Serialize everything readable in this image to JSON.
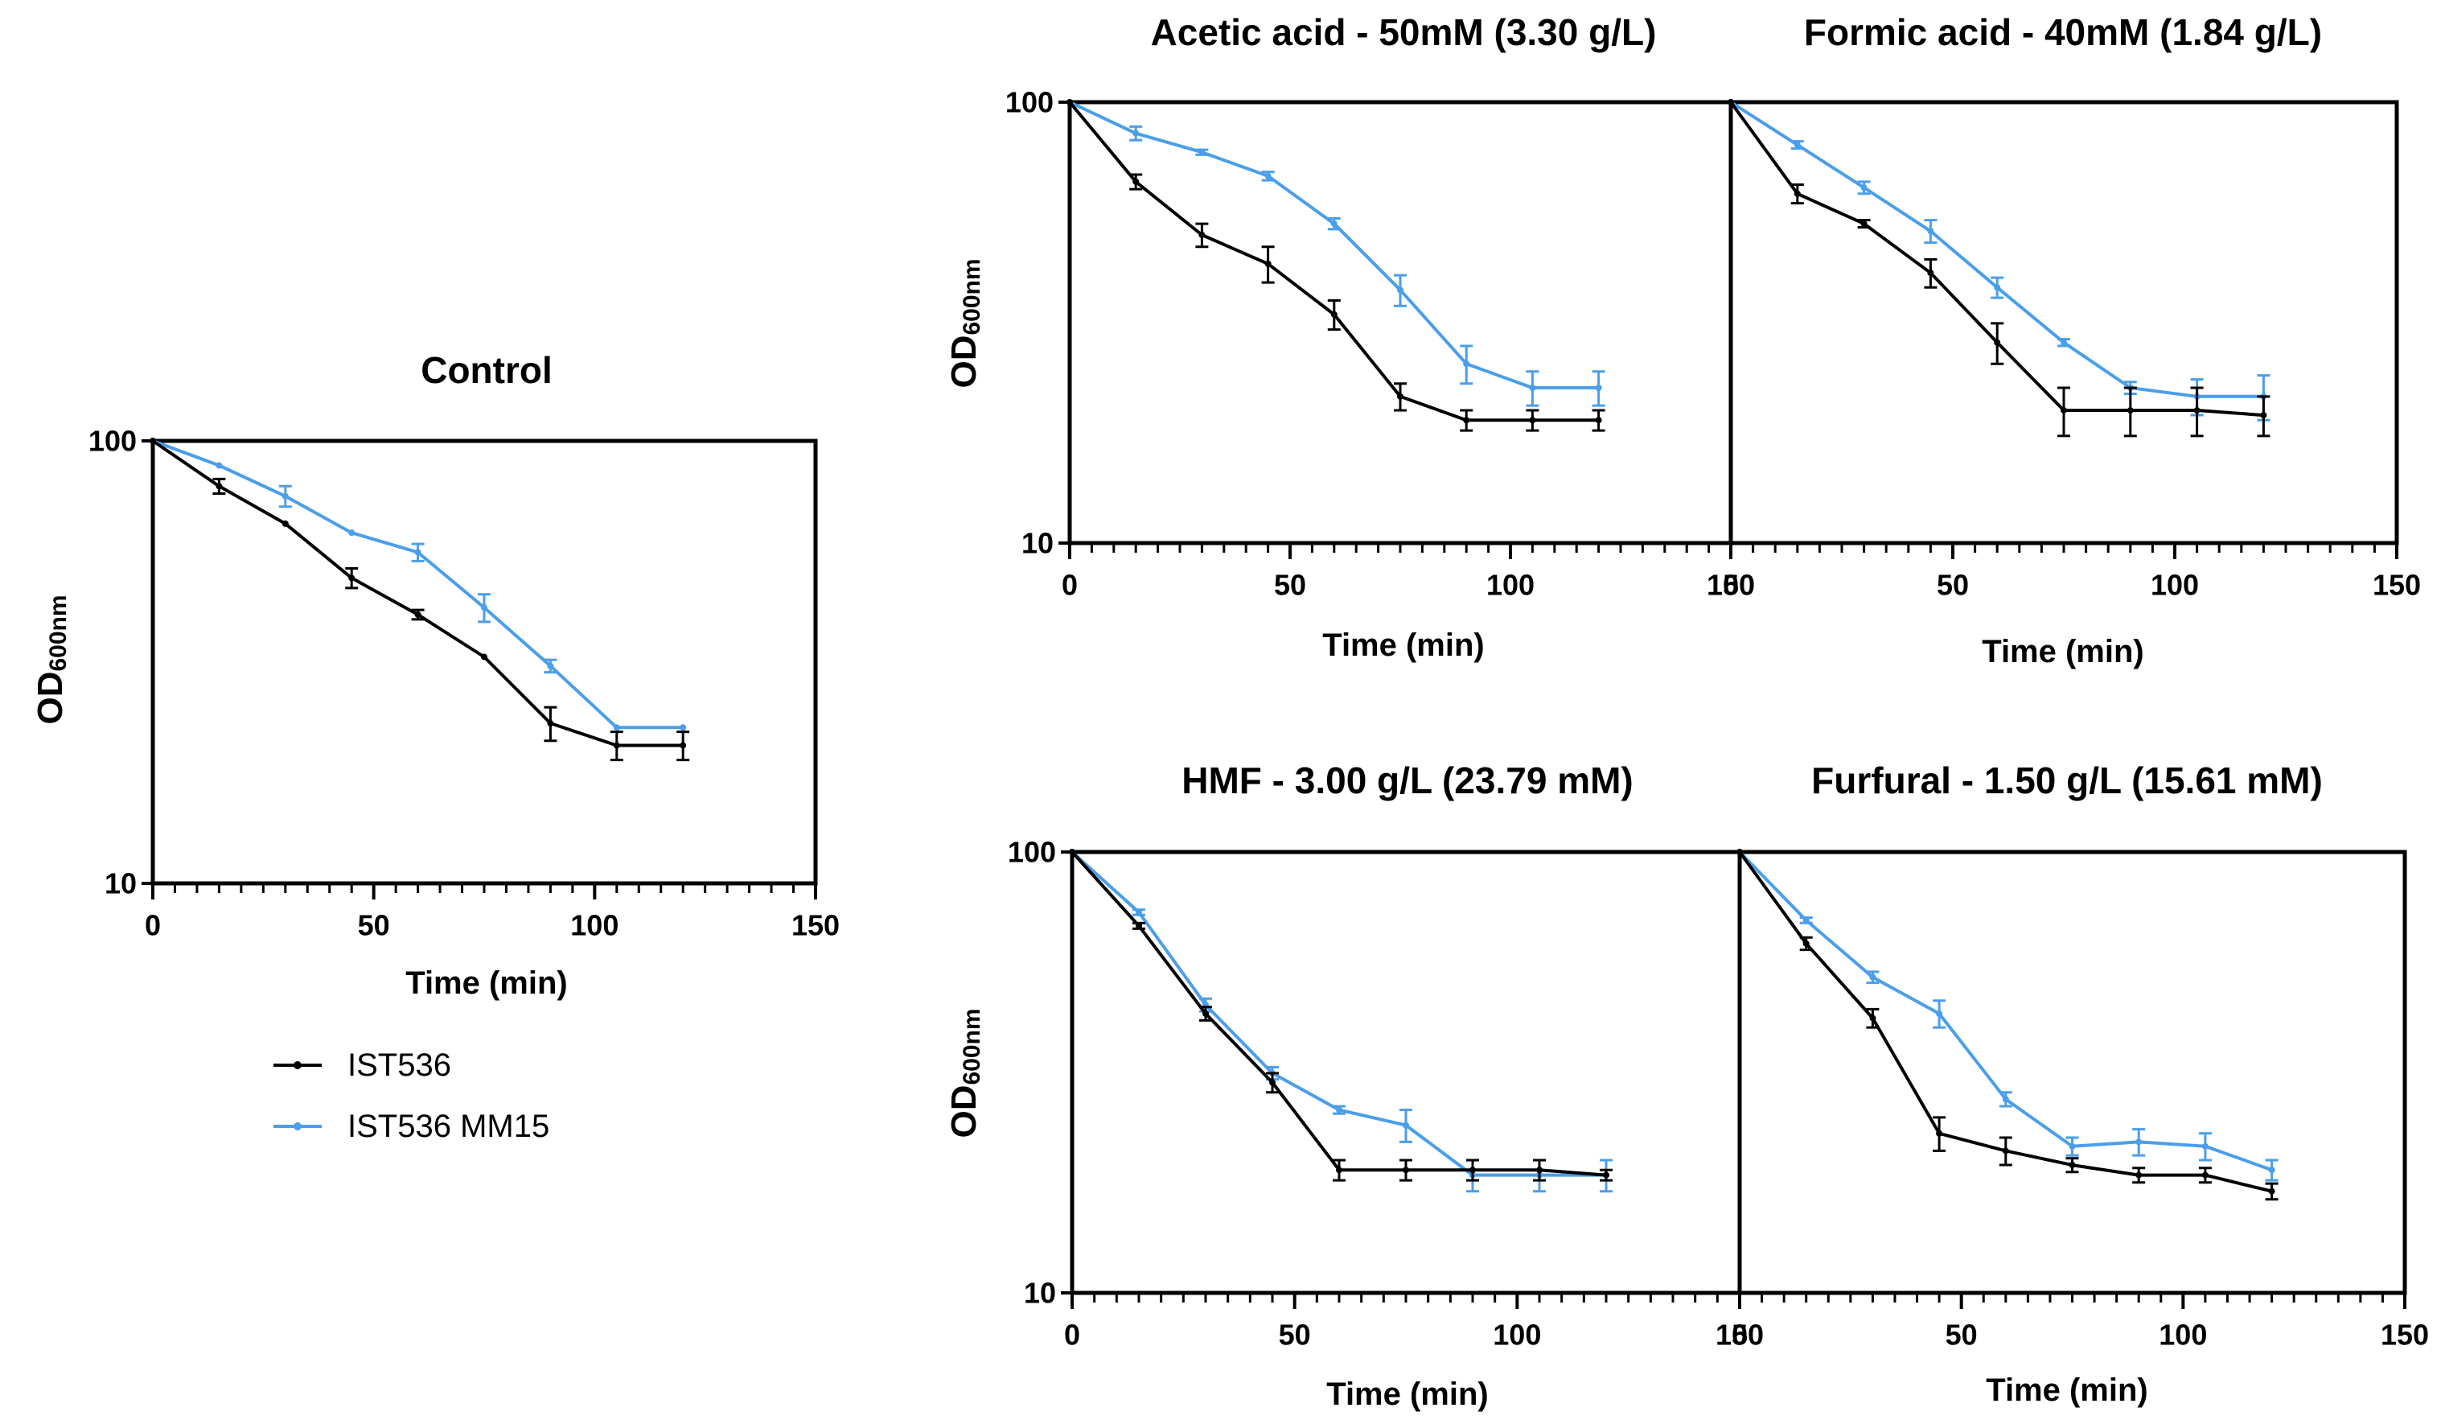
{
  "figure": {
    "legend": [
      {
        "name": "IST536",
        "color": "#000000"
      },
      {
        "name": "IST536 MM15",
        "color": "#4a9eea"
      }
    ]
  },
  "chart_data": [
    {
      "type": "line",
      "title": "Control",
      "xlabel": "Time (min)",
      "ylabel_main": "OD",
      "ylabel_sub": "600nm",
      "yscale": "log",
      "xlim": [
        0,
        150
      ],
      "ylim": [
        10,
        100
      ],
      "x_ticks": [
        "0",
        "50",
        "100",
        "150"
      ],
      "y_ticks": [
        "10",
        "100"
      ],
      "x": [
        0,
        15,
        30,
        45,
        60,
        75,
        90,
        105,
        120
      ],
      "series": [
        {
          "name": "IST536",
          "values": [
            100,
            79,
            65,
            49,
            40.5,
            32.5,
            23,
            20.5,
            20.5
          ],
          "errors": [
            0,
            3,
            0,
            2.5,
            1,
            0,
            2,
            1.5,
            1.5
          ]
        },
        {
          "name": "IST536 MM15",
          "values": [
            100,
            88,
            75,
            62,
            56,
            42,
            31,
            22.5,
            22.5
          ],
          "errors": [
            0,
            0,
            4,
            0,
            2.5,
            3,
            1,
            0,
            0
          ]
        }
      ]
    },
    {
      "type": "line",
      "title": "Acetic acid - 50mM (3.30 g/L)",
      "xlabel": "Time (min)",
      "ylabel_main": "OD",
      "ylabel_sub": "600nm",
      "yscale": "log",
      "xlim": [
        0,
        150
      ],
      "ylim": [
        10,
        100
      ],
      "x_ticks": [
        "0",
        "50",
        "100",
        "150"
      ],
      "y_ticks": [
        "10",
        "100"
      ],
      "x": [
        0,
        15,
        30,
        45,
        60,
        75,
        90,
        105,
        120
      ],
      "series": [
        {
          "name": "IST536",
          "values": [
            100,
            66,
            50,
            43,
            33,
            21.5,
            19,
            19,
            19
          ],
          "errors": [
            0,
            2.5,
            3,
            4,
            2.5,
            1.5,
            1,
            1,
            1
          ]
        },
        {
          "name": "IST536 MM15",
          "values": [
            100,
            85,
            77,
            68,
            53,
            37.5,
            25.5,
            22.5,
            22.5
          ],
          "errors": [
            0,
            3,
            1,
            1.5,
            1.5,
            3,
            2.5,
            2,
            2
          ]
        }
      ]
    },
    {
      "type": "line",
      "title": "Formic acid - 40mM (1.84 g/L)",
      "xlabel": "Time (min)",
      "ylabel_main": "OD",
      "ylabel_sub": "600nm",
      "yscale": "log",
      "xlim": [
        0,
        150
      ],
      "ylim": [
        10,
        100
      ],
      "x_ticks": [
        "0",
        "50",
        "100",
        "150"
      ],
      "y_ticks": [
        "10",
        "100"
      ],
      "x": [
        0,
        15,
        30,
        45,
        60,
        75,
        90,
        105,
        120
      ],
      "series": [
        {
          "name": "IST536",
          "values": [
            100,
            62,
            53,
            41,
            28.5,
            20,
            20,
            20,
            19.5
          ],
          "errors": [
            0,
            3,
            1,
            3,
            3,
            2.5,
            2.5,
            2.5,
            2
          ]
        },
        {
          "name": "IST536 MM15",
          "values": [
            100,
            80,
            64,
            51,
            38,
            28.5,
            22.5,
            21.5,
            21.5
          ],
          "errors": [
            0,
            1.5,
            2,
            3,
            2,
            0.5,
            0.7,
            2,
            2.5
          ]
        }
      ]
    },
    {
      "type": "line",
      "title": "HMF - 3.00 g/L (23.79 mM)",
      "xlabel": "Time (min)",
      "ylabel_main": "OD",
      "ylabel_sub": "600nm",
      "yscale": "log",
      "xlim": [
        0,
        150
      ],
      "ylim": [
        10,
        100
      ],
      "x_ticks": [
        "0",
        "50",
        "100",
        "150"
      ],
      "y_ticks": [
        "10",
        "100"
      ],
      "x": [
        0,
        15,
        30,
        45,
        60,
        75,
        90,
        105,
        120
      ],
      "series": [
        {
          "name": "IST536",
          "values": [
            100,
            68,
            43,
            30,
            19,
            19,
            19,
            19,
            18.5
          ],
          "errors": [
            0,
            1,
            1.5,
            1.5,
            1,
            1,
            1,
            1,
            0.5
          ]
        },
        {
          "name": "IST536 MM15",
          "values": [
            100,
            73,
            45,
            31.5,
            26,
            24,
            18.5,
            18.5,
            18.5
          ],
          "errors": [
            0,
            1,
            1.5,
            1,
            0.5,
            2,
            1.5,
            1.5,
            1.5
          ]
        }
      ]
    },
    {
      "type": "line",
      "title": "Furfural - 1.50 g/L (15.61 mM)",
      "xlabel": "Time (min)",
      "ylabel_main": "OD",
      "ylabel_sub": "600nm",
      "yscale": "log",
      "xlim": [
        0,
        150
      ],
      "ylim": [
        10,
        100
      ],
      "x_ticks": [
        "0",
        "50",
        "100",
        "150"
      ],
      "y_ticks": [
        "10",
        "100"
      ],
      "x": [
        0,
        15,
        30,
        45,
        60,
        75,
        90,
        105,
        120
      ],
      "series": [
        {
          "name": "IST536",
          "values": [
            100,
            62,
            42,
            23,
            21,
            19.5,
            18.5,
            18.5,
            17
          ],
          "errors": [
            0,
            2,
            2,
            2,
            1.5,
            0.7,
            0.7,
            0.7,
            0.7
          ]
        },
        {
          "name": "IST536 MM15",
          "values": [
            100,
            70,
            52,
            43,
            27.5,
            21.5,
            22,
            21.5,
            19
          ],
          "errors": [
            0,
            1,
            1.5,
            3,
            1,
            1,
            1.5,
            1.5,
            1
          ]
        }
      ]
    }
  ]
}
